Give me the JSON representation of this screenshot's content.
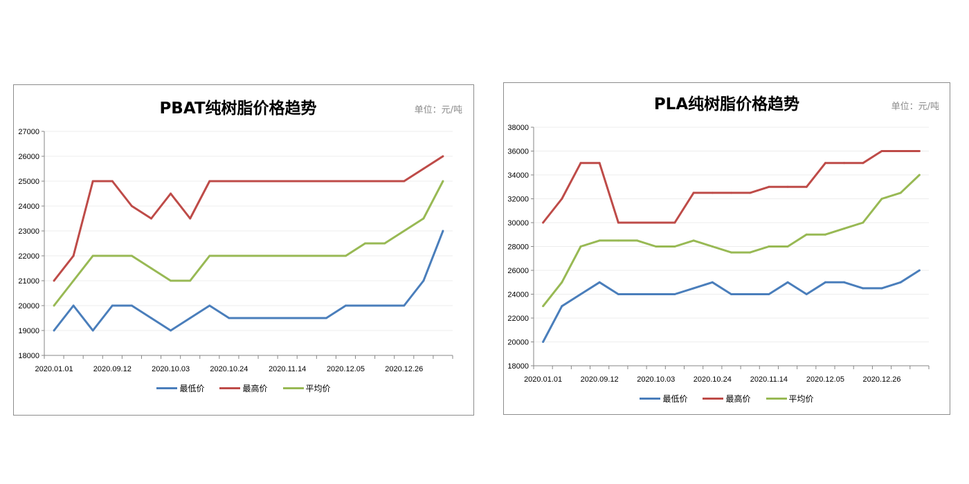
{
  "chart_data": [
    {
      "type": "line",
      "title": "PBAT纯树脂价格趋势",
      "unit_label": "单位：元/吨",
      "categories": [
        "2020.01.01",
        "",
        "",
        "2020.09.12",
        "",
        "",
        "2020.10.03",
        "",
        "",
        "2020.10.24",
        "",
        "",
        "2020.11.14",
        "",
        "",
        "2020.12.05",
        "",
        "",
        "2020.12.26",
        "",
        ""
      ],
      "ylim": [
        18000,
        27000
      ],
      "yticks": [
        18000,
        19000,
        20000,
        21000,
        22000,
        23000,
        24000,
        25000,
        26000,
        27000
      ],
      "grid": true,
      "legend": "bottom",
      "series": [
        {
          "name": "最低价",
          "color": "#4a7ebb",
          "values": [
            19000,
            20000,
            19000,
            20000,
            20000,
            19500,
            19000,
            19500,
            20000,
            19500,
            19500,
            19500,
            19500,
            19500,
            19500,
            20000,
            20000,
            20000,
            20000,
            21000,
            23000
          ]
        },
        {
          "name": "最高价",
          "color": "#be4b48",
          "values": [
            21000,
            22000,
            25000,
            25000,
            24000,
            23500,
            24500,
            23500,
            25000,
            25000,
            25000,
            25000,
            25000,
            25000,
            25000,
            25000,
            25000,
            25000,
            25000,
            25500,
            26000
          ]
        },
        {
          "name": "平均价",
          "color": "#98b954",
          "values": [
            20000,
            21000,
            22000,
            22000,
            22000,
            21500,
            21000,
            21000,
            22000,
            22000,
            22000,
            22000,
            22000,
            22000,
            22000,
            22000,
            22500,
            22500,
            23000,
            23500,
            25000
          ]
        }
      ]
    },
    {
      "type": "line",
      "title": "PLA纯树脂价格趋势",
      "unit_label": "单位：元/吨",
      "categories": [
        "2020.01.01",
        "",
        "",
        "2020.09.12",
        "",
        "",
        "2020.10.03",
        "",
        "",
        "2020.10.24",
        "",
        "",
        "2020.11.14",
        "",
        "",
        "2020.12.05",
        "",
        "",
        "2020.12.26",
        "",
        ""
      ],
      "ylim": [
        18000,
        38000
      ],
      "yticks": [
        18000,
        20000,
        22000,
        24000,
        26000,
        28000,
        30000,
        32000,
        34000,
        36000,
        38000
      ],
      "grid": true,
      "legend": "bottom",
      "series": [
        {
          "name": "最低价",
          "color": "#4a7ebb",
          "values": [
            20000,
            23000,
            24000,
            25000,
            24000,
            24000,
            24000,
            24000,
            24500,
            25000,
            24000,
            24000,
            24000,
            25000,
            24000,
            25000,
            25000,
            24500,
            24500,
            25000,
            26000
          ]
        },
        {
          "name": "最高价",
          "color": "#be4b48",
          "values": [
            30000,
            32000,
            35000,
            35000,
            30000,
            30000,
            30000,
            30000,
            32500,
            32500,
            32500,
            32500,
            33000,
            33000,
            33000,
            35000,
            35000,
            35000,
            36000,
            36000,
            36000
          ]
        },
        {
          "name": "平均价",
          "color": "#98b954",
          "values": [
            23000,
            25000,
            28000,
            28500,
            28500,
            28500,
            28000,
            28000,
            28500,
            28000,
            27500,
            27500,
            28000,
            28000,
            29000,
            29000,
            29500,
            30000,
            32000,
            32500,
            34000
          ]
        }
      ]
    }
  ]
}
